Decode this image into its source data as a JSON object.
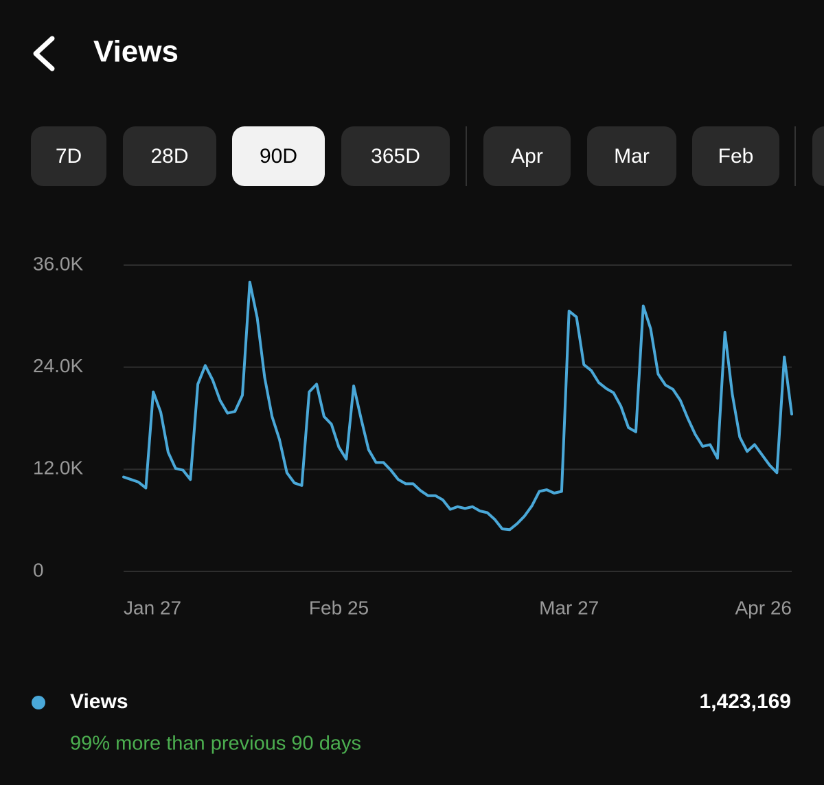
{
  "header": {
    "title": "Views"
  },
  "tabs": [
    {
      "label": "7D",
      "selected": false
    },
    {
      "label": "28D",
      "selected": false
    },
    {
      "label": "90D",
      "selected": true
    },
    {
      "label": "365D",
      "selected": false
    },
    {
      "label": "Apr",
      "selected": false
    },
    {
      "label": "Mar",
      "selected": false
    },
    {
      "label": "Feb",
      "selected": false
    }
  ],
  "chart_data": {
    "type": "line",
    "categories": [
      "Jan 27",
      null,
      null,
      null,
      null,
      null,
      null,
      null,
      null,
      null,
      null,
      null,
      null,
      null,
      null,
      null,
      null,
      null,
      null,
      null,
      null,
      null,
      null,
      null,
      null,
      null,
      null,
      null,
      null,
      "Feb 25",
      null,
      null,
      null,
      null,
      null,
      null,
      null,
      null,
      null,
      null,
      null,
      null,
      null,
      null,
      null,
      null,
      null,
      null,
      null,
      null,
      null,
      null,
      null,
      null,
      null,
      null,
      null,
      null,
      null,
      null,
      "Mar 27",
      null,
      null,
      null,
      null,
      null,
      null,
      null,
      null,
      null,
      null,
      null,
      null,
      null,
      null,
      null,
      null,
      null,
      null,
      null,
      null,
      null,
      null,
      null,
      null,
      null,
      null,
      null,
      null,
      null,
      "Apr 26"
    ],
    "series": [
      {
        "name": "Views",
        "color": "#4aa8d8",
        "values": [
          11100,
          10800,
          10500,
          9800,
          21100,
          18700,
          14000,
          12100,
          11900,
          10800,
          22000,
          24200,
          22500,
          20100,
          18600,
          18800,
          20700,
          34000,
          29800,
          22800,
          18200,
          15500,
          11600,
          10400,
          10100,
          21100,
          22000,
          18200,
          17300,
          14600,
          13200,
          21800,
          17900,
          14300,
          12800,
          12800,
          11900,
          10800,
          10300,
          10300,
          9500,
          8900,
          8900,
          8400,
          7300,
          7600,
          7400,
          7600,
          7100,
          6900,
          6100,
          5000,
          4900,
          5600,
          6500,
          7700,
          9400,
          9600,
          9200,
          9400,
          30600,
          29900,
          24300,
          23600,
          22200,
          21500,
          21000,
          19400,
          16900,
          16400,
          31200,
          28500,
          23200,
          21900,
          21400,
          20100,
          18000,
          16100,
          14700,
          14900,
          13300,
          28100,
          20800,
          15800,
          14100,
          14900,
          13700,
          12500,
          11600,
          25200,
          18500
        ]
      }
    ],
    "ylim": [
      0,
      36000
    ],
    "yticks": [
      0,
      {
        "value": 12000,
        "label": "12.0K"
      },
      {
        "value": 24000,
        "label": "24.0K"
      },
      {
        "value": 36000,
        "label": "36.0K"
      }
    ],
    "grid": true
  },
  "summary": {
    "total": "1,423,169",
    "comparison": "99% more than previous 90 days"
  }
}
